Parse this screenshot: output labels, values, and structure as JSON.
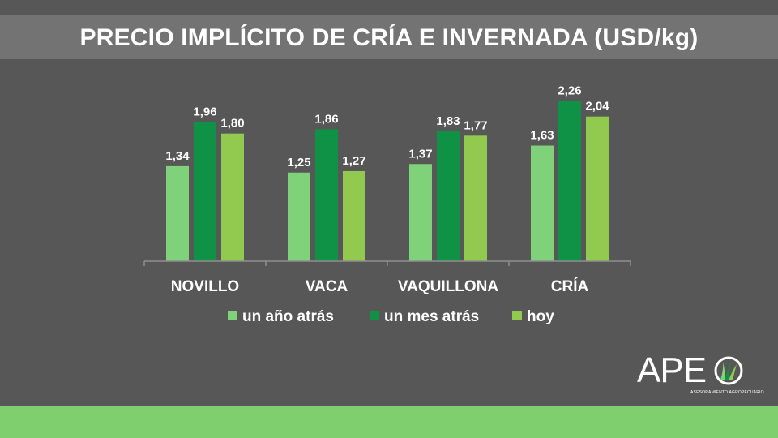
{
  "title": "PRECIO IMPLÍCITO DE CRÍA E INVERNADA (USD/kg)",
  "colors": {
    "background": "#575757",
    "title_band": "#737373",
    "series": [
      "#7fd27a",
      "#0f9246",
      "#92c94f"
    ],
    "footer": "#7fcf6f"
  },
  "chart_data": {
    "type": "bar",
    "title": "PRECIO IMPLÍCITO DE CRÍA E INVERNADA (USD/kg)",
    "categories": [
      "NOVILLO",
      "VACA",
      "VAQUILLONA",
      "CRÍA"
    ],
    "series": [
      {
        "name": "un año atrás",
        "values": [
          1.34,
          1.25,
          1.37,
          1.63
        ],
        "labels": [
          "1,34",
          "1,25",
          "1,37",
          "1,63"
        ]
      },
      {
        "name": "un mes atrás",
        "values": [
          1.96,
          1.86,
          1.83,
          2.26
        ],
        "labels": [
          "1,96",
          "1,86",
          "1,83",
          "2,26"
        ]
      },
      {
        "name": "hoy",
        "values": [
          1.8,
          1.27,
          1.77,
          2.04
        ],
        "labels": [
          "1,80",
          "1,27",
          "1,77",
          "2,04"
        ]
      }
    ],
    "ylim": [
      0,
      2.5
    ],
    "xlabel": "",
    "ylabel": "",
    "grid": false,
    "legend": "bottom"
  },
  "logo": {
    "text": "APE",
    "subtitle": "ASESORAMIENTO AGROPECUARIO",
    "mark_icon": "grass-circle-icon"
  }
}
